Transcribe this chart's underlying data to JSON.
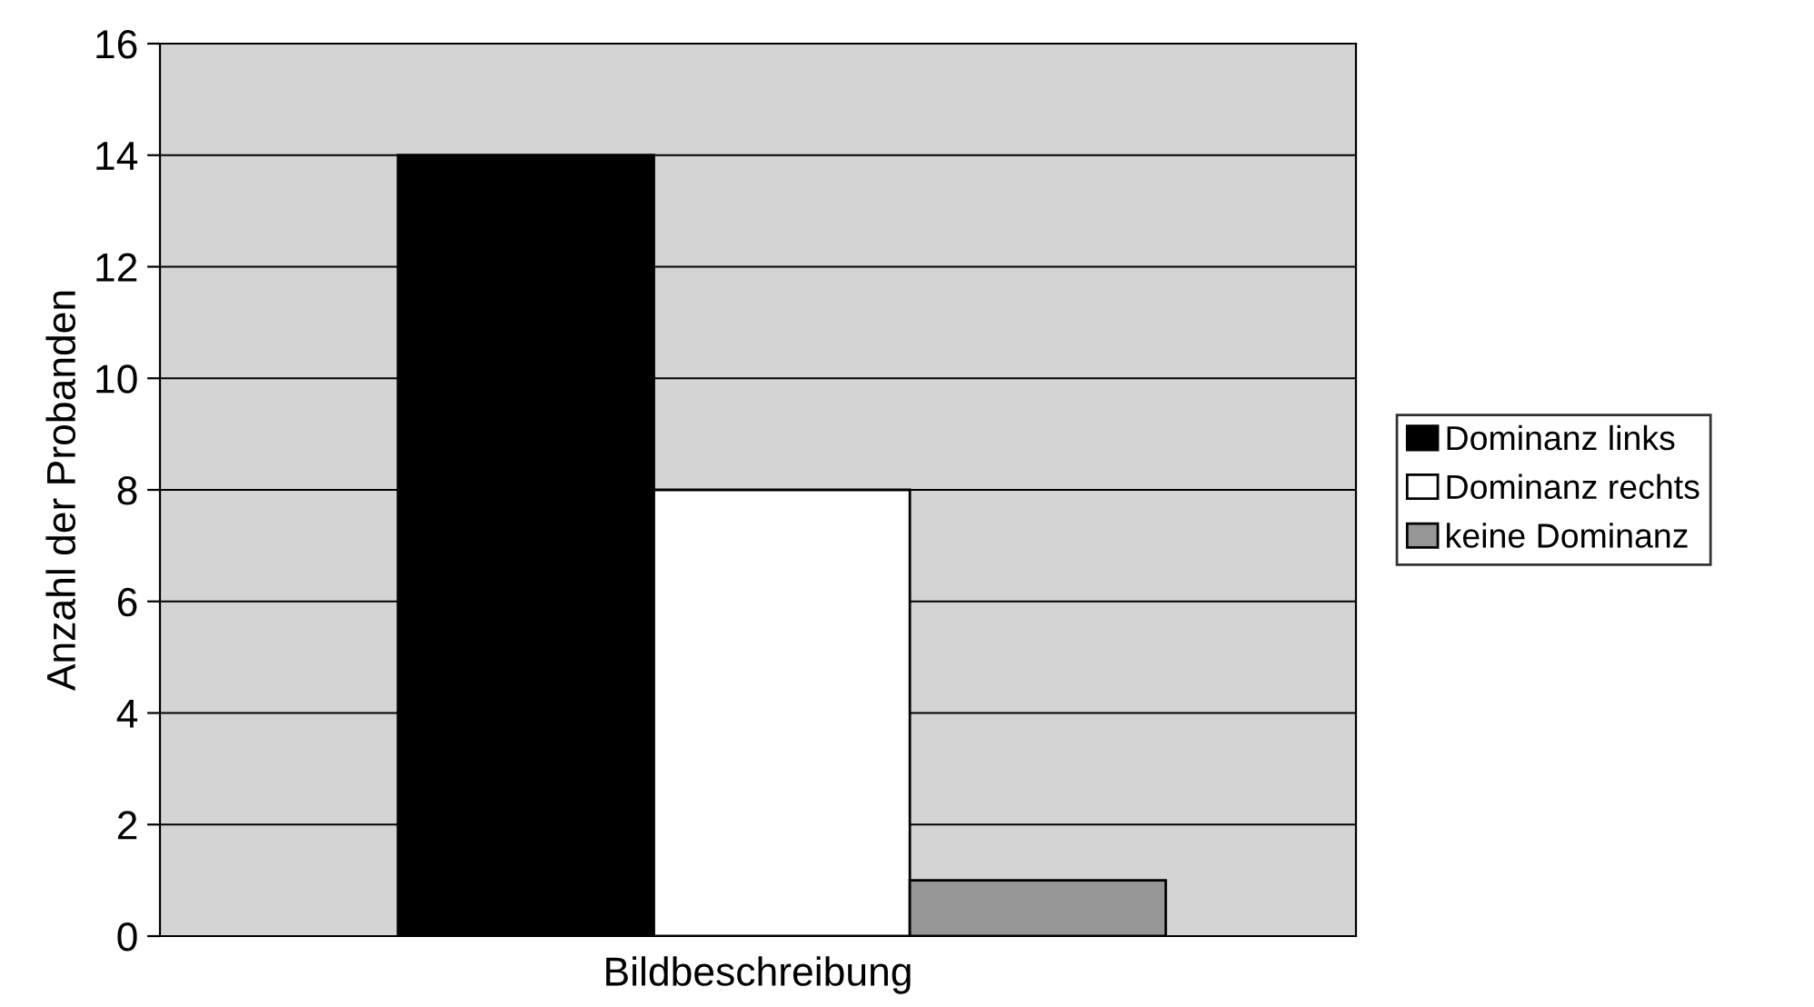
{
  "chart_data": {
    "type": "bar",
    "ylabel": "Anzahl der Probanden",
    "categories": [
      "Bildbeschreibung"
    ],
    "series": [
      {
        "name": "Dominanz links",
        "color": "#000000",
        "values": [
          14
        ]
      },
      {
        "name": "Dominanz rechts",
        "color": "#ffffff",
        "values": [
          8
        ]
      },
      {
        "name": "keine Dominanz",
        "color": "#969696",
        "values": [
          1
        ]
      }
    ],
    "ylim": [
      0,
      16
    ],
    "yticks": [
      0,
      2,
      4,
      6,
      8,
      10,
      12,
      14,
      16
    ],
    "grid": "y",
    "legend": "right"
  }
}
